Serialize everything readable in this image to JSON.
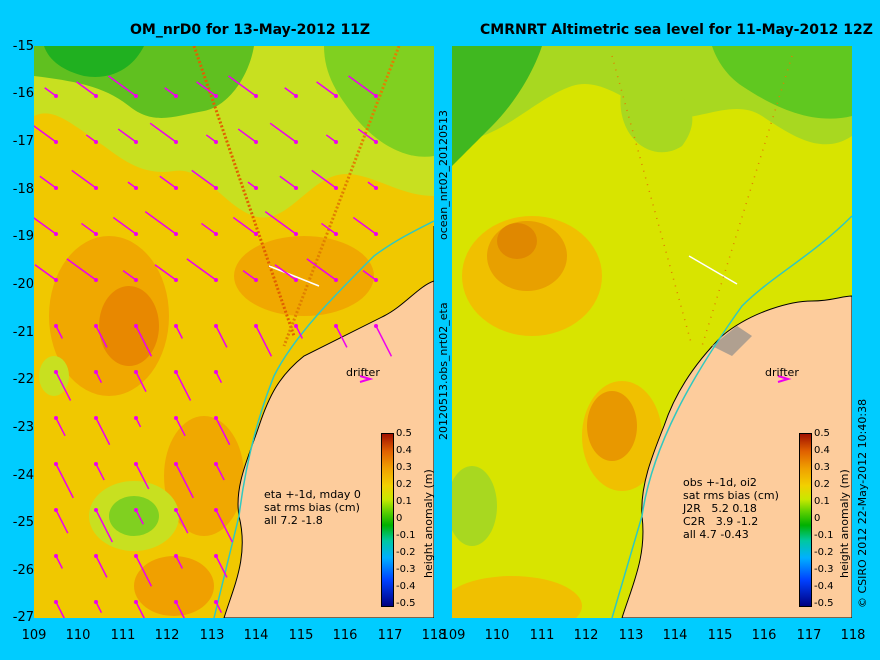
{
  "panels": [
    {
      "title": "OM_nrD0 for 13-May-2012 11Z",
      "drifter_label": "drifter",
      "side_label": "ocean_nrt02_20120513",
      "info_lines": [
        "eta +-1d, mday 0",
        "sat rms bias (cm)",
        "all 7.2 -1.8"
      ]
    },
    {
      "title": "CMRNRT Altimetric sea level  for 11-May-2012 12Z",
      "drifter_label": "drifter",
      "side_label": "20120513.obs_nrt02_eta",
      "info_lines": [
        "obs +-1d, oi2",
        "sat rms bias (cm)",
        "J2R   5.2 0.18",
        "C2R   3.9 -1.2",
        "all 4.7 -0.43"
      ]
    }
  ],
  "axes": {
    "y_ticks": [
      "-15",
      "-16",
      "-17",
      "-18",
      "-19",
      "-20",
      "-21",
      "-22",
      "-23",
      "-24",
      "-25",
      "-26",
      "-27"
    ],
    "x_ticks": [
      "109",
      "110",
      "111",
      "112",
      "113",
      "114",
      "115",
      "116",
      "117",
      "118"
    ]
  },
  "colorbar": {
    "label": "height anomaly (m)",
    "ticks": [
      "0.5",
      "0.4",
      "0.3",
      "0.2",
      "0.1",
      "0",
      "-0.1",
      "-0.2",
      "-0.3",
      "-0.4",
      "-0.5"
    ]
  },
  "credit": "© CSIRO 2012   22-May-2012 10:40:38",
  "colors": {
    "background": "#00ccff",
    "land": "#fdcc9c",
    "vector": "#ee00ee",
    "track": "#e06000"
  }
}
